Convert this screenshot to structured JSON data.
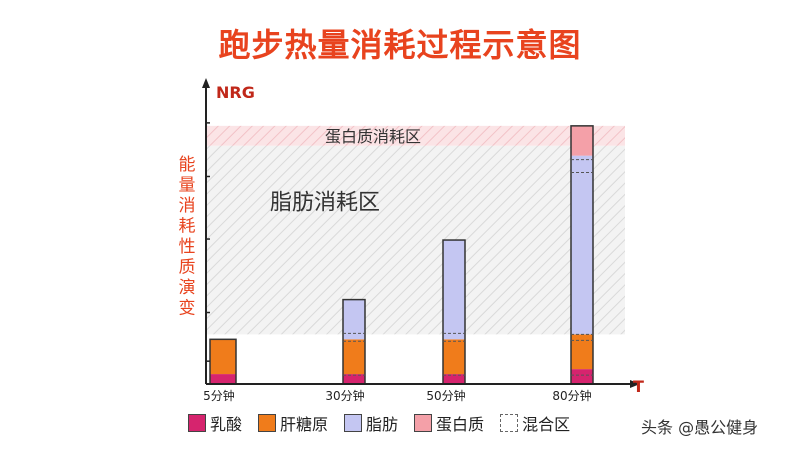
{
  "title": "跑步热量消耗过程示意图",
  "chart_data": {
    "type": "bar",
    "stacked": true,
    "xlabel": "T",
    "ylabel_top": "NRG",
    "ylabel_side": "能量消耗性质演变",
    "categories": [
      "5分钟",
      "30分钟",
      "50分钟",
      "80分钟"
    ],
    "series": [
      {
        "name": "乳酸",
        "color": "#d6246e",
        "values": [
          1,
          1,
          1,
          1.5
        ]
      },
      {
        "name": "肝糖原",
        "color": "#f07c1b",
        "values": [
          3.5,
          3.5,
          3.5,
          3.5
        ]
      },
      {
        "name": "脂肪",
        "color": "#c4c6f2",
        "values": [
          0,
          4,
          10,
          18
        ]
      },
      {
        "name": "蛋白质",
        "color": "#f4a0a8",
        "values": [
          0,
          0,
          0,
          3
        ]
      }
    ],
    "mixed_dash_levels": [
      [],
      [
        0.9,
        4.3,
        5.1
      ],
      [
        0.9,
        4.3,
        5.1
      ],
      [
        0.9,
        4.4,
        5.0,
        21.3,
        22.6
      ]
    ],
    "zones": [
      {
        "label": "蛋白质消耗区",
        "from": 24,
        "to": 26
      },
      {
        "label": "脂肪消耗区",
        "from": 5,
        "to": 24
      }
    ],
    "ylim": [
      0,
      28
    ]
  },
  "legend": [
    {
      "label": "乳酸",
      "color": "#d6246e",
      "style": "solid"
    },
    {
      "label": "肝糖原",
      "color": "#f07c1b",
      "style": "solid"
    },
    {
      "label": "脂肪",
      "color": "#c4c6f2",
      "style": "solid"
    },
    {
      "label": "蛋白质",
      "color": "#f4a0a8",
      "style": "solid"
    },
    {
      "label": "混合区",
      "color": "#ffffff",
      "style": "dashed"
    }
  ],
  "watermark": "头条 @愚公健身"
}
